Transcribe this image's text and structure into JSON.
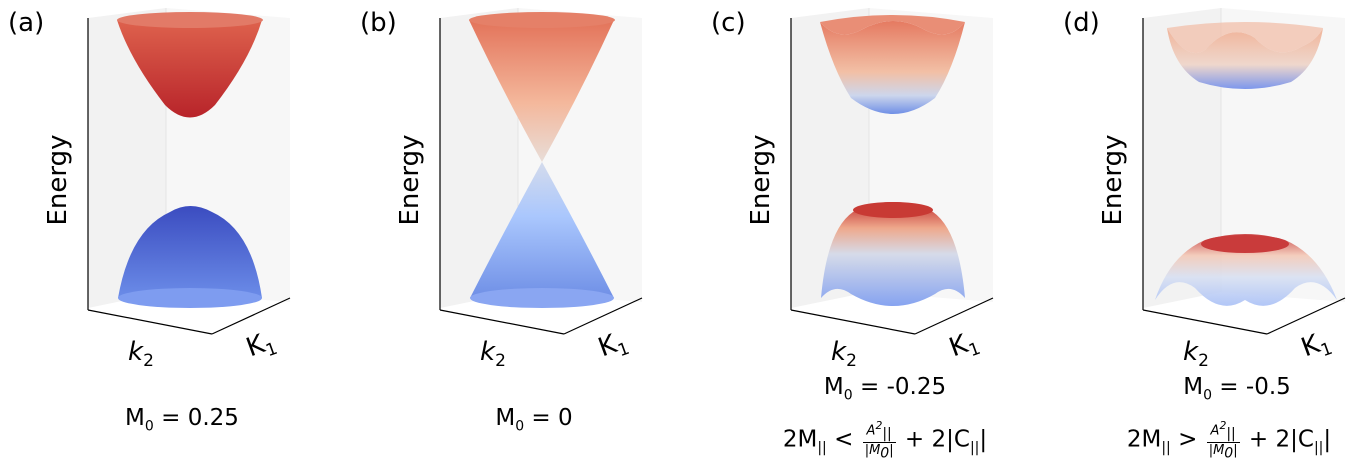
{
  "chart_data": [
    {
      "type": "surface",
      "panel_label": "(a)",
      "zlabel": "Energy",
      "xlabel_k2": "k",
      "xlabel_k2_sub": "2",
      "xlabel_k1": "K",
      "xlabel_k1_sub": "1",
      "caption_main": "M",
      "caption_sub": "0",
      "caption_value": " = 0.25",
      "condition": null
    },
    {
      "type": "surface",
      "panel_label": "(b)",
      "zlabel": "Energy",
      "xlabel_k2": "k",
      "xlabel_k2_sub": "2",
      "xlabel_k1": "K",
      "xlabel_k1_sub": "1",
      "caption_main": "M",
      "caption_sub": "0",
      "caption_value": " = 0",
      "condition": null
    },
    {
      "type": "surface",
      "panel_label": "(c)",
      "zlabel": "Energy",
      "xlabel_k2": "k",
      "xlabel_k2_sub": "2",
      "xlabel_k1": "K",
      "xlabel_k1_sub": "1",
      "caption_main": "M",
      "caption_sub": "0",
      "caption_value": " = -0.25",
      "condition": {
        "lhs": "2M",
        "lhs_sub": "||",
        "op": "<",
        "num": "A",
        "num_sub": "||",
        "num_sup": "2",
        "den": "|M",
        "den_sub": "0",
        "den_end": "|",
        "rhs": "+ 2|C",
        "rhs_sub": "||",
        "rhs_end": "|"
      }
    },
    {
      "type": "surface",
      "panel_label": "(d)",
      "zlabel": "Energy",
      "xlabel_k2": "k",
      "xlabel_k2_sub": "2",
      "xlabel_k1": "K",
      "xlabel_k1_sub": "1",
      "caption_main": "M",
      "caption_sub": "0",
      "caption_value": " = -0.5",
      "condition": {
        "lhs": "2M",
        "lhs_sub": "||",
        "op": ">",
        "num": "A",
        "num_sub": "||",
        "num_sup": "2",
        "den": "|M",
        "den_sub": "0",
        "den_end": "|",
        "rhs": "+ 2|C",
        "rhs_sub": "||",
        "rhs_end": "|"
      }
    }
  ],
  "colors": {
    "red_dark": "#b8242a",
    "red_light": "#f0a184",
    "white_mid": "#dddcdc",
    "blue_light": "#aac7fd",
    "blue_dark": "#3b4cc0",
    "pane": "#f2f2f2",
    "pane_edge": "#d9d9d9"
  }
}
